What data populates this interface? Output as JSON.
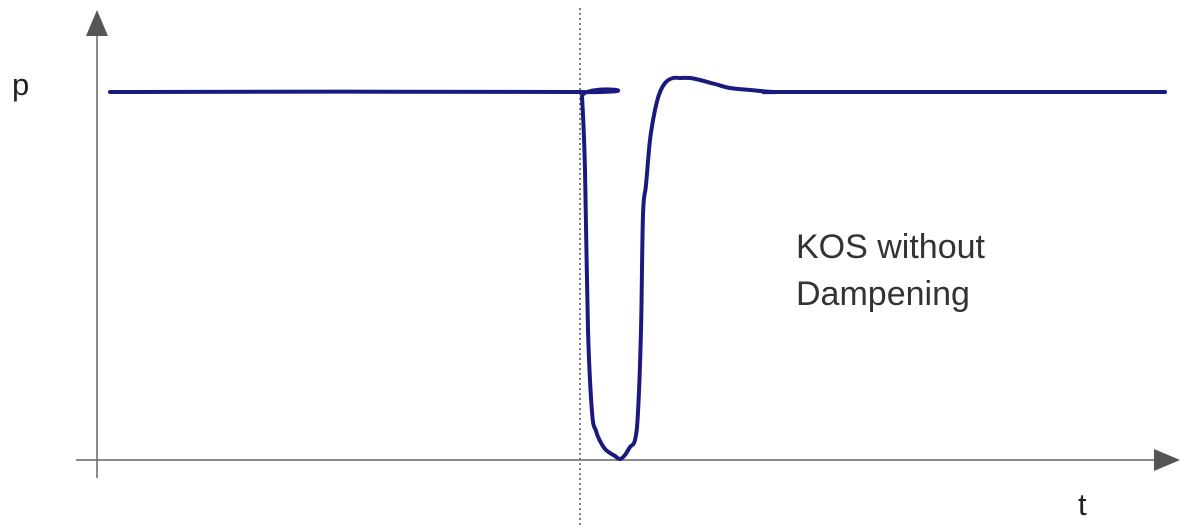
{
  "chart_data": {
    "type": "line",
    "xlabel": "t",
    "ylabel": "p",
    "annotation": [
      "KOS without",
      "Dampening"
    ],
    "marker_x": 580,
    "grid": false,
    "legend": "none",
    "series": [
      {
        "color": "#1a1a7e",
        "x": [
          110,
          580,
          582,
          585,
          588,
          592,
          596,
          600,
          605,
          610,
          615,
          620,
          625,
          630,
          635,
          638,
          641,
          643,
          646,
          650,
          655,
          660,
          666,
          673,
          680,
          690,
          700,
          715,
          730,
          750,
          775,
          800,
          1165
        ],
        "y": [
          92,
          92,
          97,
          170,
          330,
          412,
          431,
          441,
          449,
          453,
          456,
          459,
          455,
          447,
          440,
          412,
          330,
          215,
          185,
          140,
          110,
          92,
          82,
          78,
          78,
          78,
          80,
          84,
          88,
          90,
          92,
          92,
          92
        ]
      }
    ]
  }
}
